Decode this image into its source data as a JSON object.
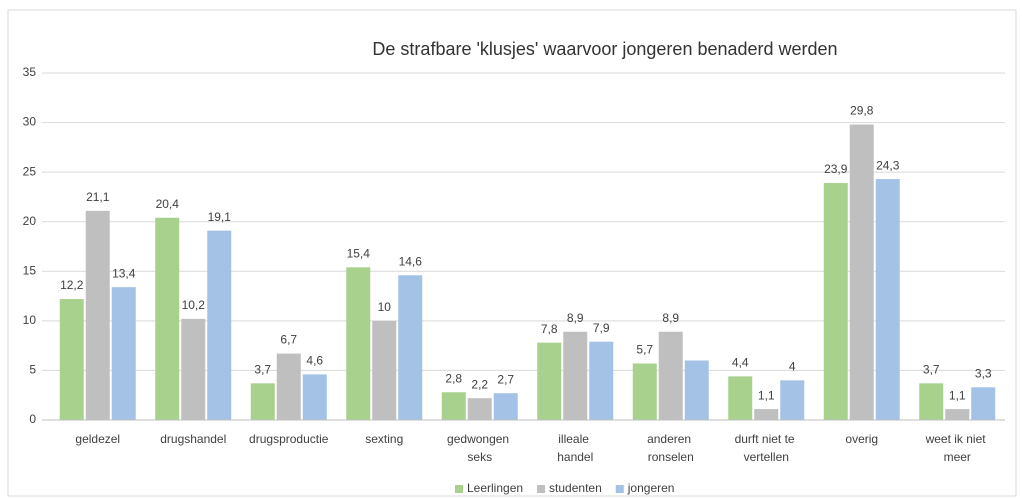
{
  "chart_data": {
    "type": "bar",
    "title": "De strafbare 'klusjes' waarvoor jongeren benaderd werden",
    "categories": [
      "geldezel",
      "drugshandel",
      "drugsproductie",
      "sexting",
      "gedwongen seks",
      "illeale handel",
      "anderen ronselen",
      "durft niet te vertellen",
      "overig",
      "weet ik niet meer"
    ],
    "series": [
      {
        "name": "Leerlingen",
        "color": "#a9d18e",
        "values": [
          12.2,
          20.4,
          3.7,
          15.4,
          2.8,
          7.8,
          5.7,
          4.4,
          23.9,
          3.7
        ],
        "value_labels": [
          "12,2",
          "20,4",
          "3,7",
          "15,4",
          "2,8",
          "7,8",
          "5,7",
          "4,4",
          "23,9",
          "3,7"
        ]
      },
      {
        "name": "studenten",
        "color": "#bfbfbf",
        "values": [
          21.1,
          10.2,
          6.7,
          10,
          2.2,
          8.9,
          8.9,
          1.1,
          29.8,
          1.1
        ],
        "value_labels": [
          "21,1",
          "10,2",
          "6,7",
          "10",
          "2,2",
          "8,9",
          "8,9",
          "1,1",
          "29,8",
          "1,1"
        ]
      },
      {
        "name": "jongeren",
        "color": "#a4c2e6",
        "values": [
          13.4,
          19.1,
          4.6,
          14.6,
          2.7,
          7.9,
          6.0,
          4,
          24.3,
          3.3
        ],
        "value_labels": [
          "13,4",
          "19,1",
          "4,6",
          "14,6",
          "2,7",
          "7,9",
          null,
          "4",
          "24,3",
          "3,3"
        ]
      }
    ],
    "ylim": [
      0,
      35
    ],
    "yticks": [
      0,
      5,
      10,
      15,
      20,
      25,
      30,
      35
    ],
    "grid": true,
    "legend": "bottom"
  }
}
